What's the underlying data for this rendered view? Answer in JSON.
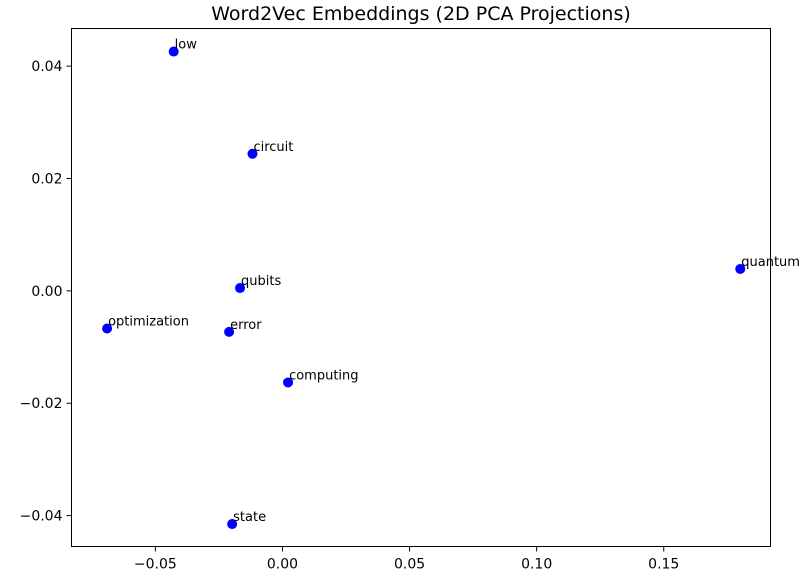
{
  "chart_data": {
    "type": "scatter",
    "title": "Word2Vec Embeddings (2D PCA Projections)",
    "xlabel": "",
    "ylabel": "",
    "xlim": [
      -0.083,
      0.192
    ],
    "ylim": [
      -0.0455,
      0.0467
    ],
    "grid": false,
    "x_ticks": [
      {
        "value": -0.05,
        "label": "−0.05"
      },
      {
        "value": 0.0,
        "label": "0.00"
      },
      {
        "value": 0.05,
        "label": "0.05"
      },
      {
        "value": 0.1,
        "label": "0.10"
      },
      {
        "value": 0.15,
        "label": "0.15"
      }
    ],
    "y_ticks": [
      {
        "value": 0.04,
        "label": "0.04"
      },
      {
        "value": 0.02,
        "label": "0.02"
      },
      {
        "value": 0.0,
        "label": "0.00"
      },
      {
        "value": -0.02,
        "label": "−0.02"
      },
      {
        "value": -0.04,
        "label": "−0.04"
      }
    ],
    "marker_color": "#0000ff",
    "points": [
      {
        "label": "low",
        "x": -0.0428,
        "y": 0.0426
      },
      {
        "label": "circuit",
        "x": -0.0118,
        "y": 0.0244
      },
      {
        "label": "quantum",
        "x": 0.1801,
        "y": 0.0039
      },
      {
        "label": "qubits",
        "x": -0.0167,
        "y": 0.0005
      },
      {
        "label": "optimization",
        "x": -0.069,
        "y": -0.0067
      },
      {
        "label": "error",
        "x": -0.021,
        "y": -0.0073
      },
      {
        "label": "computing",
        "x": 0.0022,
        "y": -0.0163
      },
      {
        "label": "state",
        "x": -0.0198,
        "y": -0.0415
      }
    ]
  }
}
